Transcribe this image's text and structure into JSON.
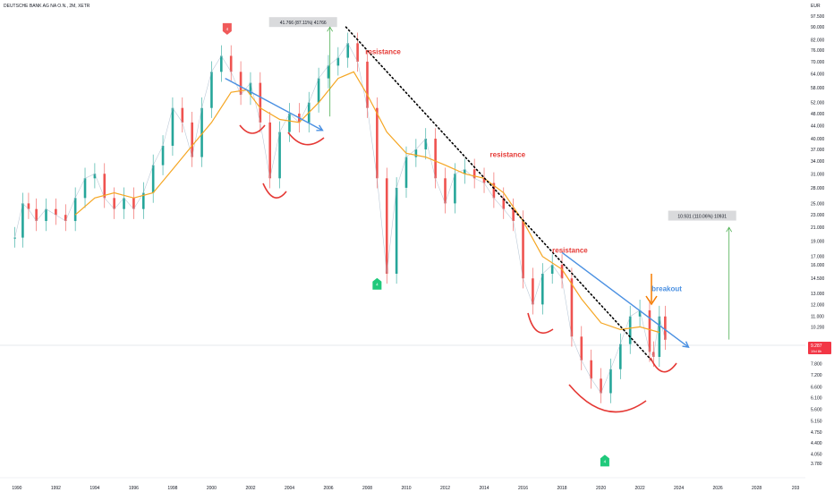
{
  "header": {
    "symbol_title": "DEUTSCHE BANK AG NA O.N., 2M, XETR",
    "currency": "EUR"
  },
  "price_badge": {
    "value": "9.287",
    "sub": "19d 8h",
    "color": "#f23645"
  },
  "chart_data": {
    "type": "line",
    "title": "DEUTSCHE BANK AG NA O.N., 2M, XETR",
    "currency": "EUR",
    "y_scale": "log",
    "ylim": [
      3.5,
      100
    ],
    "xlim": [
      1989.5,
      2030.5
    ],
    "y_ticks": [
      "97.500",
      "90.000",
      "82.000",
      "76.000",
      "70.000",
      "64.000",
      "58.000",
      "52.000",
      "48.000",
      "44.000",
      "40.000",
      "37.000",
      "34.000",
      "31.000",
      "28.000",
      "25.000",
      "23.000",
      "21.000",
      "19.000",
      "17.000",
      "16.000",
      "14.500",
      "13.000",
      "12.000",
      "11.000",
      "10.200",
      "9.287",
      "8.600",
      "7.800",
      "7.200",
      "6.600",
      "6.100",
      "5.600",
      "5.150",
      "4.750",
      "4.400",
      "4.050",
      "3.780"
    ],
    "x_ticks": [
      "1990",
      "1992",
      "1994",
      "1996",
      "1998",
      "2000",
      "2002",
      "2004",
      "2006",
      "2008",
      "2010",
      "2012",
      "2014",
      "2016",
      "2018",
      "2020",
      "2022",
      "2024",
      "2026",
      "2028",
      "203"
    ],
    "price_line": {
      "name": "close",
      "points": [
        [
          1989.9,
          19.5
        ],
        [
          1990.3,
          25
        ],
        [
          1990.6,
          24
        ],
        [
          1991.0,
          22
        ],
        [
          1991.5,
          24
        ],
        [
          1992.0,
          23
        ],
        [
          1992.5,
          22
        ],
        [
          1993.0,
          26
        ],
        [
          1993.5,
          30
        ],
        [
          1994.0,
          31
        ],
        [
          1994.5,
          26
        ],
        [
          1995.0,
          24
        ],
        [
          1995.5,
          26
        ],
        [
          1996.0,
          24
        ],
        [
          1996.5,
          27
        ],
        [
          1997.0,
          33
        ],
        [
          1997.5,
          38
        ],
        [
          1998.0,
          50
        ],
        [
          1998.5,
          45
        ],
        [
          1999.0,
          35
        ],
        [
          1999.5,
          50
        ],
        [
          2000.0,
          65
        ],
        [
          2000.5,
          73
        ],
        [
          2001.0,
          65
        ],
        [
          2001.5,
          55
        ],
        [
          2002.0,
          60
        ],
        [
          2002.5,
          45
        ],
        [
          2003.0,
          30
        ],
        [
          2003.5,
          42
        ],
        [
          2004.0,
          48
        ],
        [
          2004.5,
          45
        ],
        [
          2005.0,
          52
        ],
        [
          2005.5,
          62
        ],
        [
          2006.0,
          68
        ],
        [
          2006.5,
          72
        ],
        [
          2007.0,
          80
        ],
        [
          2007.5,
          70
        ],
        [
          2008.0,
          50
        ],
        [
          2008.5,
          30
        ],
        [
          2009.0,
          15
        ],
        [
          2009.5,
          28
        ],
        [
          2010.0,
          35
        ],
        [
          2010.5,
          37
        ],
        [
          2011.0,
          40
        ],
        [
          2011.5,
          30
        ],
        [
          2012.0,
          25
        ],
        [
          2012.5,
          31
        ],
        [
          2013.0,
          32
        ],
        [
          2013.5,
          30
        ],
        [
          2014.0,
          29
        ],
        [
          2014.5,
          26
        ],
        [
          2015.0,
          24
        ],
        [
          2015.5,
          22
        ],
        [
          2016.0,
          14.5
        ],
        [
          2016.5,
          12
        ],
        [
          2017.0,
          15
        ],
        [
          2017.5,
          16
        ],
        [
          2018.0,
          14.5
        ],
        [
          2018.5,
          9.5
        ],
        [
          2019.0,
          8
        ],
        [
          2019.5,
          7
        ],
        [
          2020.0,
          6.3
        ],
        [
          2020.5,
          7.5
        ],
        [
          2021.0,
          9
        ],
        [
          2021.5,
          11
        ],
        [
          2022.0,
          11.5
        ],
        [
          2022.5,
          8.5
        ],
        [
          2022.7,
          8.2
        ],
        [
          2023.0,
          11
        ],
        [
          2023.3,
          9.287
        ]
      ]
    },
    "moving_average": {
      "name": "MA",
      "color": "#f5a623",
      "points": [
        [
          1993.0,
          23
        ],
        [
          1994.0,
          26
        ],
        [
          1995.0,
          27
        ],
        [
          1996.0,
          26
        ],
        [
          1997.0,
          27
        ],
        [
          1998.0,
          32
        ],
        [
          1999.0,
          38
        ],
        [
          2000.0,
          45
        ],
        [
          2001.0,
          56
        ],
        [
          2001.8,
          57
        ],
        [
          2002.5,
          50
        ],
        [
          2003.5,
          46
        ],
        [
          2004.5,
          45
        ],
        [
          2005.5,
          52
        ],
        [
          2006.5,
          62
        ],
        [
          2007.3,
          65
        ],
        [
          2008.0,
          55
        ],
        [
          2009.0,
          42
        ],
        [
          2010.0,
          36
        ],
        [
          2011.0,
          35
        ],
        [
          2012.0,
          33
        ],
        [
          2013.0,
          31
        ],
        [
          2014.0,
          30
        ],
        [
          2015.0,
          27
        ],
        [
          2016.0,
          22
        ],
        [
          2017.0,
          17
        ],
        [
          2018.0,
          15.5
        ],
        [
          2019.0,
          12.5
        ],
        [
          2020.0,
          10.5
        ],
        [
          2021.0,
          10
        ],
        [
          2022.0,
          10.2
        ],
        [
          2023.0,
          9.8
        ]
      ]
    },
    "trendlines": [
      {
        "name": "descending-blue-1",
        "color": "#4a90e2",
        "points": [
          [
            2000.7,
            62
          ],
          [
            2005.7,
            42.5
          ]
        ],
        "arrow": true
      },
      {
        "name": "resistance-dotted",
        "color": "#000000",
        "dashed": true,
        "points": [
          [
            2006.9,
            90
          ],
          [
            2022.6,
            8.0
          ]
        ]
      },
      {
        "name": "descending-blue-2",
        "color": "#4a90e2",
        "points": [
          [
            2018.0,
            17.5
          ],
          [
            2024.5,
            8.8
          ]
        ],
        "arrow": true
      }
    ],
    "annotations": [
      {
        "text": "resistance",
        "color": "#e53935",
        "x": 2007.9,
        "y": 74
      },
      {
        "text": "resistance",
        "color": "#e53935",
        "x": 2014.3,
        "y": 35
      },
      {
        "text": "resistance",
        "color": "#e53935",
        "x": 2017.5,
        "y": 17.5
      },
      {
        "text": "breakout",
        "color": "#4a90e2",
        "x": 2022.6,
        "y": 13.2
      }
    ],
    "measure_boxes": [
      {
        "label": "41.766 (87.11%) 41766",
        "x": 2004.7,
        "y": 93,
        "arrow_from": 47,
        "arrow_to": 90
      },
      {
        "label": "10.931 (110.06%) 10931",
        "x": 2025.2,
        "y": 22.8,
        "arrow_from": 9.3,
        "arrow_to": 21
      }
    ],
    "markers": [
      {
        "type": "red-flag",
        "label": "4",
        "x": 2000.8,
        "y": 89
      },
      {
        "type": "green-flag",
        "label": "4",
        "x": 2008.5,
        "y": 13.9
      },
      {
        "type": "green-flag",
        "label": "4",
        "x": 2020.2,
        "y": 3.85
      }
    ],
    "grid": false
  }
}
